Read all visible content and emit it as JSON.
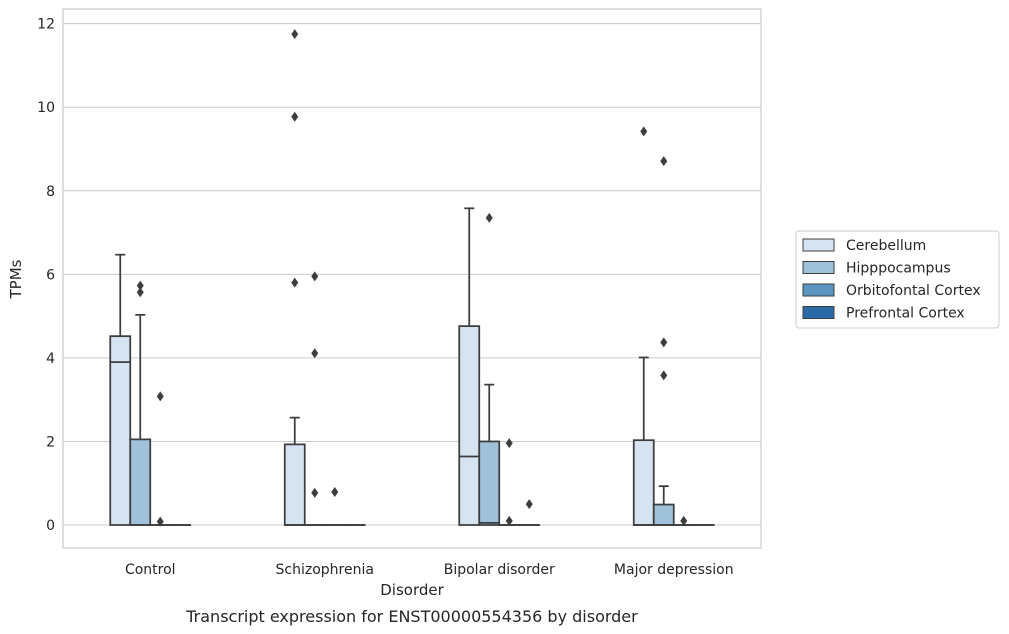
{
  "chart_data": {
    "type": "box",
    "title": "Transcript expression for ENST00000554356 by disorder",
    "xlabel": "Disorder",
    "ylabel": "TPMs",
    "ylim": [
      -0.55,
      12.35
    ],
    "yticks": [
      0,
      2,
      4,
      6,
      8,
      10,
      12
    ],
    "grid": "horizontal",
    "legend_position": "right",
    "categories": [
      "Control",
      "Schizophrenia",
      "Bipolar disorder",
      "Major depression"
    ],
    "series": [
      {
        "name": "Cerebellum",
        "color": "#d6e3f0",
        "boxes": [
          {
            "min": 0,
            "q1": 0,
            "median": 3.9,
            "q3": 4.52,
            "max": 6.47,
            "outliers": []
          },
          {
            "min": 0,
            "q1": 0,
            "median": 0,
            "q3": 1.93,
            "max": 2.57,
            "outliers": [
              11.75,
              9.77,
              5.8
            ]
          },
          {
            "min": 0,
            "q1": 0,
            "median": 1.64,
            "q3": 4.76,
            "max": 7.58,
            "outliers": []
          },
          {
            "min": 0,
            "q1": 0,
            "median": 0,
            "q3": 2.03,
            "max": 4.01,
            "outliers": [
              9.42
            ]
          }
        ]
      },
      {
        "name": "Hipppocampus",
        "color": "#9fc1da",
        "boxes": [
          {
            "min": 0,
            "q1": 0,
            "median": 0,
            "q3": 2.05,
            "max": 5.03,
            "outliers": [
              5.73,
              5.57
            ]
          },
          {
            "min": 0,
            "q1": 0,
            "median": 0,
            "q3": 0,
            "max": 0,
            "outliers": [
              5.95,
              4.11,
              0.77
            ]
          },
          {
            "min": 0,
            "q1": 0,
            "median": 0.05,
            "q3": 2.0,
            "max": 3.36,
            "outliers": [
              7.35
            ]
          },
          {
            "min": 0,
            "q1": 0,
            "median": 0,
            "q3": 0.49,
            "max": 0.93,
            "outliers": [
              8.71,
              4.37,
              3.58
            ]
          }
        ]
      },
      {
        "name": "Orbitofontal Cortex",
        "color": "#5a95c2",
        "boxes": [
          {
            "min": 0,
            "q1": 0,
            "median": 0,
            "q3": 0,
            "max": 0,
            "outliers": [
              3.08,
              0.08
            ]
          },
          {
            "min": 0,
            "q1": 0,
            "median": 0,
            "q3": 0,
            "max": 0,
            "outliers": [
              0.79
            ]
          },
          {
            "min": 0,
            "q1": 0,
            "median": 0,
            "q3": 0,
            "max": 0,
            "outliers": [
              1.96,
              0.1
            ]
          },
          {
            "min": 0,
            "q1": 0,
            "median": 0,
            "q3": 0,
            "max": 0,
            "outliers": [
              0.1
            ]
          }
        ]
      },
      {
        "name": "Prefrontal Cortex",
        "color": "#2b6aa8",
        "boxes": [
          {
            "min": 0,
            "q1": 0,
            "median": 0,
            "q3": 0,
            "max": 0,
            "outliers": []
          },
          {
            "min": 0,
            "q1": 0,
            "median": 0,
            "q3": 0,
            "max": 0,
            "outliers": []
          },
          {
            "min": 0,
            "q1": 0,
            "median": 0,
            "q3": 0,
            "max": 0,
            "outliers": [
              0.5
            ]
          },
          {
            "min": 0,
            "q1": 0,
            "median": 0,
            "q3": 0,
            "max": 0,
            "outliers": []
          }
        ]
      }
    ]
  }
}
